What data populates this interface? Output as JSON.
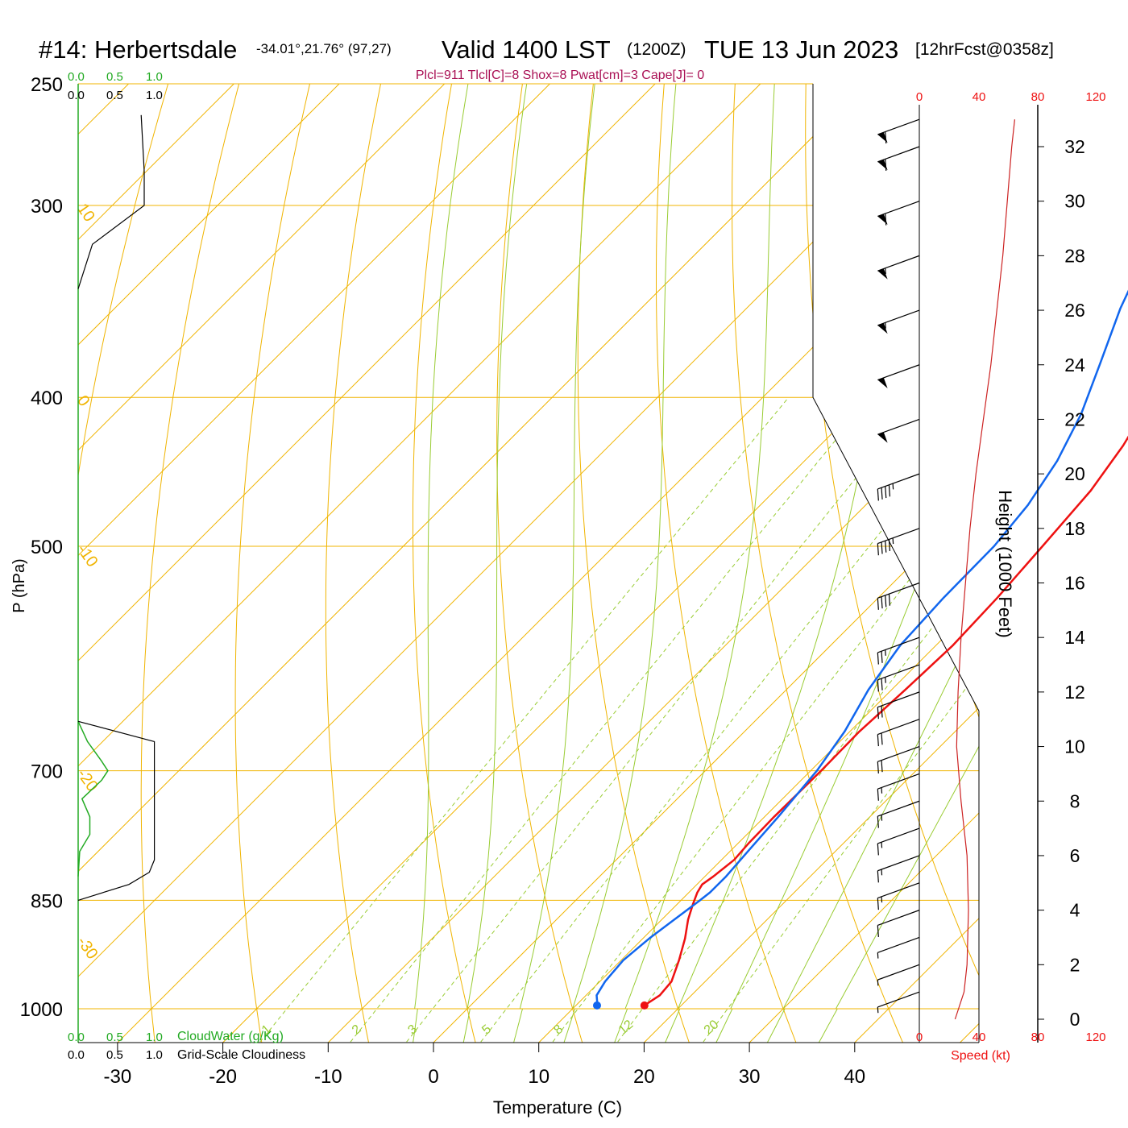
{
  "header": {
    "station": "#14: Herbertsdale",
    "coords": "-34.01°,21.76° (97,27)",
    "valid": "Valid 1400 LST",
    "zulu": "(1200Z)",
    "date": "TUE 13 Jun 2023",
    "fcst": "[12hrFcst@0358z]",
    "indices": "Plcl=911 Tlcl[C]=8 Shox=8 Pwat[cm]=3 Cape[J]= 0"
  },
  "left_panel": {
    "cw_ticks": [
      "0.0",
      "0.5",
      "1.0"
    ],
    "cl_ticks": [
      "0.0",
      "0.5",
      "1.0"
    ],
    "cw_label": "CloudWater (g/Kg)",
    "cl_label": "Grid-Scale Cloudiness"
  },
  "speed_axis": {
    "ticks": [
      "0",
      "40",
      "80",
      "120"
    ],
    "label": "Speed (kt)"
  },
  "colors": {
    "temp": "#ee1111",
    "dew": "#1166ee",
    "isotherm": "#f0b400",
    "mixing": "#99cc33",
    "cloudwater": "#22aa22",
    "speed": "#cc2222",
    "indices": "#aa1155"
  },
  "chart_data": {
    "type": "line",
    "title": "#14: Herbertsdale  Valid 1400 LST (1200Z) TUE 13 Jun 2023",
    "xlabel": "Temperature (C)",
    "ylabel": "P (hPa)",
    "y2label": "Height (1000 Feet)",
    "x_ticks": [
      -30,
      -20,
      -10,
      0,
      10,
      20,
      30,
      40
    ],
    "p_ticks": [
      250,
      300,
      400,
      500,
      700,
      850,
      1000
    ],
    "height_ticks": [
      0,
      2,
      4,
      6,
      8,
      10,
      12,
      14,
      16,
      18,
      20,
      22,
      24,
      26,
      28,
      30,
      32
    ],
    "isotherm_labels": [
      {
        "t": 10,
        "p": 300,
        "text": "10"
      },
      {
        "t": 0,
        "p": 400,
        "text": "0"
      },
      {
        "t": -10,
        "p": 500,
        "text": "-10"
      },
      {
        "t": -20,
        "p": 700,
        "text": "-20"
      },
      {
        "t": -30,
        "p": 900,
        "text": "-30"
      },
      {
        "t": 0,
        "p": 325,
        "text": "0"
      },
      {
        "t": 10,
        "p": 420,
        "text": "10"
      },
      {
        "t": 20,
        "p": 500,
        "text": "20"
      },
      {
        "t": 30,
        "p": 590,
        "text": "30"
      }
    ],
    "mixing_ratio_labels": [
      "1",
      "2",
      "3",
      "5",
      "8",
      "12",
      "20"
    ],
    "series": [
      {
        "name": "Temperature",
        "points": [
          [
            16.5,
            995
          ],
          [
            17,
            980
          ],
          [
            16.8,
            960
          ],
          [
            15.5,
            930
          ],
          [
            14,
            900
          ],
          [
            12.5,
            875
          ],
          [
            11.5,
            855
          ],
          [
            10.8,
            840
          ],
          [
            10.5,
            830
          ],
          [
            10.8,
            820
          ],
          [
            11.2,
            800
          ],
          [
            11,
            780
          ],
          [
            10.9,
            750
          ],
          [
            11,
            700
          ],
          [
            10.9,
            660
          ],
          [
            11.3,
            620
          ],
          [
            11.6,
            580
          ],
          [
            11.3,
            540
          ],
          [
            10.7,
            500
          ],
          [
            10,
            460
          ],
          [
            8.8,
            430
          ],
          [
            7,
            400
          ],
          [
            4.5,
            370
          ],
          [
            1.5,
            340
          ],
          [
            -1.5,
            310
          ],
          [
            -4,
            285
          ],
          [
            -6.5,
            260
          ]
        ]
      },
      {
        "name": "Dewpoint",
        "points": [
          [
            12,
            995
          ],
          [
            11.7,
            990
          ],
          [
            11,
            980
          ],
          [
            10.5,
            960
          ],
          [
            10.2,
            930
          ],
          [
            10.6,
            900
          ],
          [
            11.3,
            870
          ],
          [
            11.8,
            850
          ],
          [
            12,
            840
          ],
          [
            12,
            820
          ],
          [
            11.7,
            790
          ],
          [
            11.3,
            750
          ],
          [
            10.6,
            700
          ],
          [
            9.5,
            660
          ],
          [
            7.8,
            620
          ],
          [
            6.6,
            580
          ],
          [
            6.2,
            540
          ],
          [
            6.1,
            500
          ],
          [
            5.4,
            470
          ],
          [
            4,
            440
          ],
          [
            1.8,
            410
          ],
          [
            -1.2,
            380
          ],
          [
            -4.5,
            350
          ],
          [
            -7.5,
            320
          ],
          [
            -10,
            295
          ],
          [
            -12,
            275
          ],
          [
            -13.5,
            260
          ]
        ]
      }
    ],
    "cloud_water": [
      [
        0,
        650
      ],
      [
        0.12,
        670
      ],
      [
        0.3,
        690
      ],
      [
        0.38,
        700
      ],
      [
        0.3,
        710
      ],
      [
        0.05,
        730
      ],
      [
        0.15,
        750
      ],
      [
        0.15,
        770
      ],
      [
        0.02,
        790
      ],
      [
        0,
        820
      ]
    ],
    "cloudiness": [
      [
        0,
        650
      ],
      [
        0.75,
        670
      ],
      [
        0.75,
        800
      ],
      [
        0.7,
        815
      ],
      [
        0.5,
        830
      ],
      [
        0,
        850
      ]
    ],
    "cloudiness_upper": [
      [
        0.62,
        262
      ],
      [
        0.65,
        285
      ],
      [
        0.65,
        300
      ],
      [
        0.14,
        318
      ],
      [
        0,
        340
      ]
    ],
    "wind_speed_kt": [
      [
        0,
        24
      ],
      [
        1,
        30
      ],
      [
        2,
        32
      ],
      [
        4,
        33
      ],
      [
        6,
        32
      ],
      [
        8,
        28
      ],
      [
        10,
        25
      ],
      [
        12,
        26
      ],
      [
        14,
        28
      ],
      [
        16,
        31
      ],
      [
        18,
        34
      ],
      [
        20,
        38
      ],
      [
        22,
        43
      ],
      [
        24,
        48
      ],
      [
        26,
        52
      ],
      [
        28,
        56
      ],
      [
        30,
        59
      ],
      [
        32,
        62
      ],
      [
        33,
        64
      ]
    ],
    "wind_barbs": [
      {
        "h": 1,
        "spd": 8
      },
      {
        "h": 2,
        "spd": 8
      },
      {
        "h": 3,
        "spd": 8
      },
      {
        "h": 4,
        "spd": 10
      },
      {
        "h": 5,
        "spd": 15
      },
      {
        "h": 6,
        "spd": 15
      },
      {
        "h": 7,
        "spd": 15
      },
      {
        "h": 8,
        "spd": 15
      },
      {
        "h": 9,
        "spd": 15
      },
      {
        "h": 10,
        "spd": 20
      },
      {
        "h": 11,
        "spd": 20
      },
      {
        "h": 12,
        "spd": 20
      },
      {
        "h": 13,
        "spd": 25
      },
      {
        "h": 14,
        "spd": 25
      },
      {
        "h": 16,
        "spd": 40
      },
      {
        "h": 18,
        "spd": 45
      },
      {
        "h": 20,
        "spd": 45
      },
      {
        "h": 22,
        "spd": 50
      },
      {
        "h": 24,
        "spd": 50
      },
      {
        "h": 26,
        "spd": 55
      },
      {
        "h": 28,
        "spd": 55
      },
      {
        "h": 30,
        "spd": 60
      },
      {
        "h": 32,
        "spd": 60
      },
      {
        "h": 33,
        "spd": 60
      }
    ]
  }
}
